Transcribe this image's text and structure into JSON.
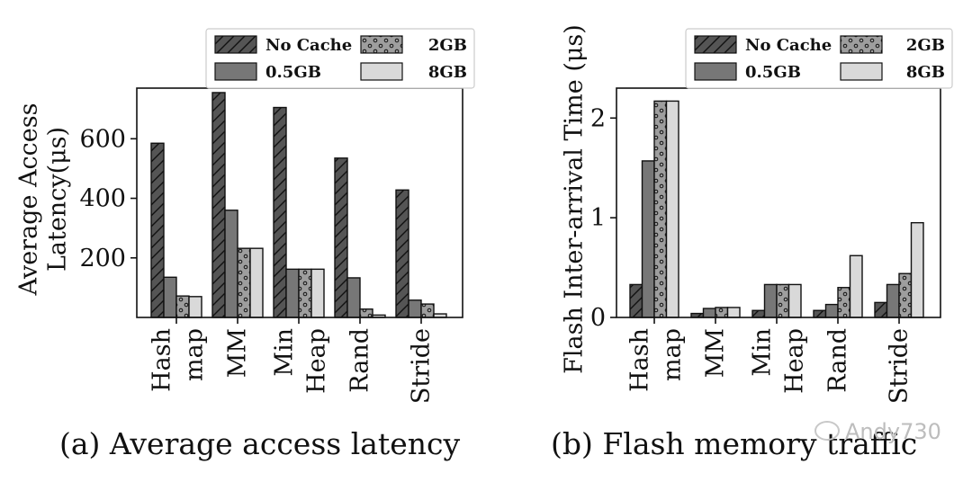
{
  "chart_data": [
    {
      "type": "bar",
      "id": "a",
      "caption": "(a) Average access latency",
      "ylabel_lines": [
        "Average Access",
        "Latency(μs)"
      ],
      "categories": [
        [
          "Hash",
          "map"
        ],
        [
          "MM"
        ],
        [
          "Min",
          "Heap"
        ],
        [
          "Rand"
        ],
        [
          "Stride"
        ]
      ],
      "ylim": [
        0,
        770
      ],
      "yticks": [
        200,
        400,
        600
      ],
      "legend": [
        "No Cache",
        "0.5GB",
        "2GB",
        "8GB"
      ],
      "legend_position": "top-right",
      "series": [
        {
          "name": "No Cache",
          "values": [
            585,
            755,
            705,
            535,
            428
          ]
        },
        {
          "name": "0.5GB",
          "values": [
            135,
            360,
            162,
            133,
            58
          ]
        },
        {
          "name": "2GB",
          "values": [
            72,
            232,
            162,
            28,
            45
          ]
        },
        {
          "name": "8GB",
          "values": [
            70,
            232,
            162,
            8,
            12
          ]
        }
      ]
    },
    {
      "type": "bar",
      "id": "b",
      "caption": "(b) Flash memory traffic",
      "ylabel_lines": [
        "Flash Inter-arrival Time (μs)"
      ],
      "categories": [
        [
          "Hash",
          "map"
        ],
        [
          "MM"
        ],
        [
          "Min",
          "Heap"
        ],
        [
          "Rand"
        ],
        [
          "Stride"
        ]
      ],
      "ylim": [
        0,
        2.3
      ],
      "yticks": [
        0,
        1,
        2
      ],
      "legend": [
        "No Cache",
        "0.5GB",
        "2GB",
        "8GB"
      ],
      "legend_position": "top-right",
      "series": [
        {
          "name": "No Cache",
          "values": [
            0.33,
            0.04,
            0.07,
            0.07,
            0.15
          ]
        },
        {
          "name": "0.5GB",
          "values": [
            1.57,
            0.09,
            0.33,
            0.13,
            0.33
          ]
        },
        {
          "name": "2GB",
          "values": [
            2.17,
            0.1,
            0.33,
            0.3,
            0.44
          ]
        },
        {
          "name": "8GB",
          "values": [
            2.17,
            0.1,
            0.33,
            0.62,
            0.95
          ]
        }
      ]
    }
  ],
  "watermark": "Andy730",
  "colors": {
    "no_cache": "#555555",
    "gb05": "#777777",
    "gb2": "#9e9e9e",
    "gb8": "#d9d9d9",
    "stroke": "#111111"
  }
}
